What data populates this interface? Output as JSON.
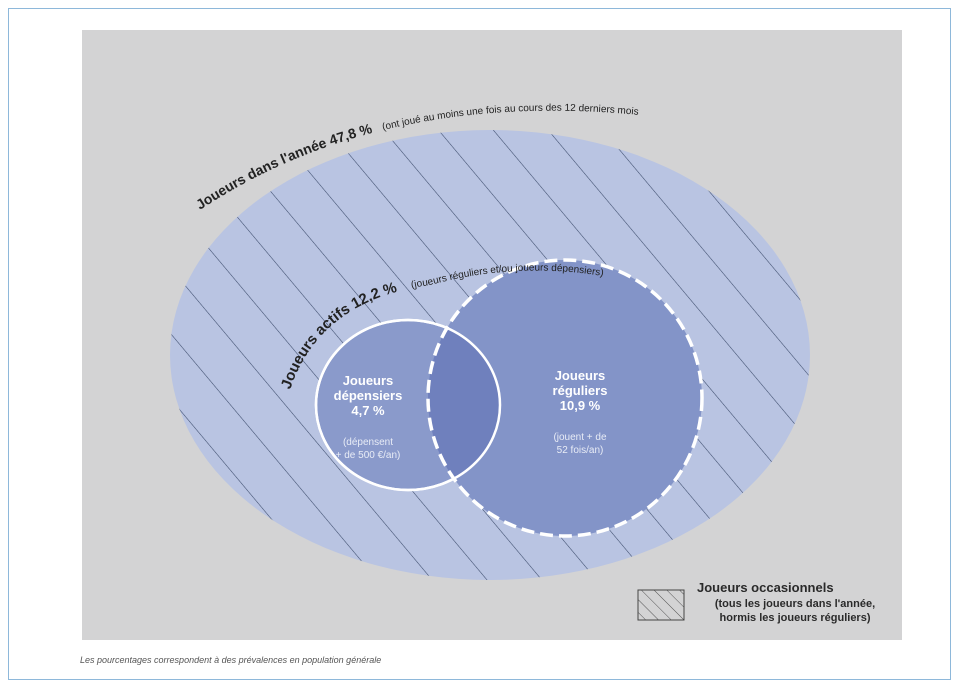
{
  "outer_set": {
    "label": "Joueurs dans l'année 47,8 %",
    "note": "(ont joué au moins une fois au cours des 12 derniers mois)"
  },
  "active_set": {
    "label": "Joueurs actifs 12,2 %",
    "note": "(joueurs réguliers et/ou joueurs dépensiers)"
  },
  "spenders": {
    "title": "Joueurs\ndépensiers\n4,7 %",
    "desc": "(dépensent\n+ de 500 €/an)"
  },
  "regulars": {
    "title": "Joueurs\nréguliers\n10,9 %",
    "desc": "(jouent + de\n52 fois/an)"
  },
  "legend": {
    "title": "Joueurs occasionnels",
    "desc": "(tous les joueurs dans l'année,\nhormis les joueurs réguliers)"
  },
  "footnote": "Les pourcentages correspondent à des prévalences en population générale",
  "colors": {
    "panel": "#d3d3d4",
    "outer_fill": "#b9c4e2",
    "regulars_fill": "#8394c8",
    "spenders_fill": "#8a9acb",
    "overlap_fill": "#6f80bd",
    "hatch": "#3b4a6a"
  }
}
